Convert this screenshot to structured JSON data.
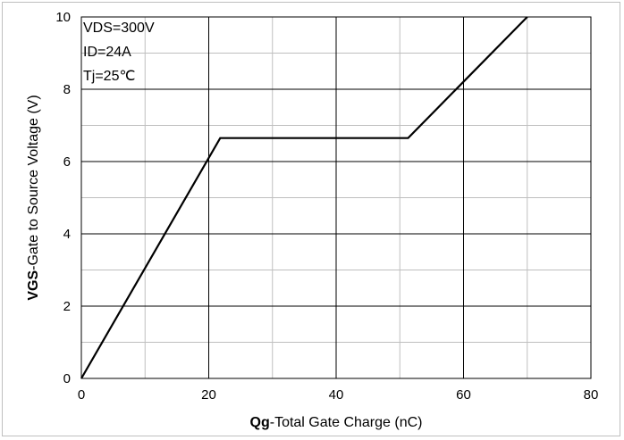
{
  "chart_data": {
    "type": "line",
    "title": "",
    "xlabel_bold": "Qg",
    "xlabel_rest": "-Total Gate Charge (nC)",
    "ylabel_bold": "VGS",
    "ylabel_rest": "-Gate to Source Voltage (V)",
    "xlim": [
      0,
      80
    ],
    "ylim": [
      0,
      10
    ],
    "x_ticks": [
      0,
      20,
      40,
      60,
      80
    ],
    "y_ticks": [
      0,
      2,
      4,
      6,
      8,
      10
    ],
    "x_minor_step": 10,
    "y_minor_step": 1,
    "grid": true,
    "annotations": [
      "VDS=300V",
      "ID=24A",
      "Tj=25℃"
    ],
    "series": [
      {
        "color": "#000000",
        "x": [
          0,
          21.8,
          51.3,
          70
        ],
        "y": [
          0,
          6.65,
          6.65,
          10
        ]
      }
    ]
  }
}
